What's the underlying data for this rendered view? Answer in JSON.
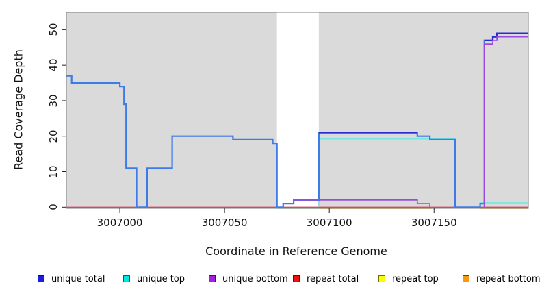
{
  "figure": {
    "x_axis_title": "Coordinate in Reference Genome",
    "y_axis_title": "Read Coverage Depth"
  },
  "chart_data": {
    "type": "line",
    "subtype": "step-coverage-plot",
    "title": "",
    "xlabel": "Coordinate in Reference Genome",
    "ylabel": "Read Coverage Depth",
    "xlim": [
      3006974.5,
      3007195
    ],
    "ylim": [
      -0.33,
      54.9
    ],
    "x_ticks": [
      3007000,
      3007050,
      3007100,
      3007150
    ],
    "y_ticks": [
      0,
      10,
      20,
      30,
      40,
      50
    ],
    "grid": false,
    "plot_background": "#DADADA",
    "unshaded_band": {
      "x0": 3007075,
      "x1": 3007095,
      "color": "#FFFFFF"
    },
    "box_color": "#7d7d7d",
    "legend_position": "bottom",
    "legend": [
      {
        "label": "unique total",
        "color": "#1D1DE0"
      },
      {
        "label": "unique top",
        "color": "#00E5E6"
      },
      {
        "label": "unique bottom",
        "color": "#A21FDC"
      },
      {
        "label": "repeat total",
        "color": "#EE1111"
      },
      {
        "label": "repeat top",
        "color": "#FCFC0A"
      },
      {
        "label": "repeat bottom",
        "color": "#F79A0E"
      }
    ],
    "series": [
      {
        "name": "unique total",
        "step_points": [
          [
            3006974.5,
            37
          ],
          [
            3006977,
            35
          ],
          [
            3007000,
            34
          ],
          [
            3007002,
            29
          ],
          [
            3007003,
            11
          ],
          [
            3007008,
            0
          ],
          [
            3007013,
            11
          ],
          [
            3007025,
            20
          ],
          [
            3007054,
            19
          ],
          [
            3007073,
            18
          ],
          [
            3007075,
            0
          ],
          [
            3007078,
            1
          ],
          [
            3007083,
            2
          ],
          [
            3007095,
            21
          ],
          [
            3007142,
            20
          ],
          [
            3007148,
            19
          ],
          [
            3007160,
            0
          ],
          [
            3007172,
            1
          ],
          [
            3007174,
            47
          ],
          [
            3007178,
            48
          ],
          [
            3007180,
            49
          ],
          [
            3007195,
            49
          ]
        ]
      },
      {
        "name": "unique top",
        "step_points": [
          [
            3006974.5,
            37
          ],
          [
            3006977,
            35
          ],
          [
            3007000,
            34
          ],
          [
            3007002,
            29
          ],
          [
            3007003,
            11
          ],
          [
            3007008,
            0
          ],
          [
            3007013,
            11
          ],
          [
            3007025,
            20
          ],
          [
            3007054,
            19
          ],
          [
            3007073,
            18
          ],
          [
            3007075,
            0
          ],
          [
            3007095,
            19
          ],
          [
            3007160,
            0
          ],
          [
            3007172,
            1
          ],
          [
            3007195,
            1
          ]
        ]
      },
      {
        "name": "unique bottom",
        "step_points": [
          [
            3006974.5,
            0
          ],
          [
            3007078,
            1
          ],
          [
            3007083,
            2
          ],
          [
            3007142,
            1
          ],
          [
            3007148,
            0
          ],
          [
            3007174,
            46
          ],
          [
            3007178,
            47
          ],
          [
            3007180,
            48
          ],
          [
            3007195,
            48
          ]
        ]
      },
      {
        "name": "repeat total",
        "step_points": [
          [
            3006974.5,
            0
          ],
          [
            3007195,
            0
          ]
        ]
      },
      {
        "name": "repeat top",
        "step_points": [
          [
            3006974.5,
            0
          ],
          [
            3007195,
            0
          ]
        ]
      },
      {
        "name": "repeat bottom",
        "step_points": [
          [
            3006974.5,
            0
          ],
          [
            3007195,
            0
          ]
        ]
      }
    ],
    "render_layers": [
      {
        "name": "repeat-total-line",
        "color": "#DE4265",
        "width": 1.4,
        "dy": 0,
        "runs": [
          [
            [
              3006974.5,
              0
            ],
            [
              3007195,
              0
            ]
          ]
        ]
      },
      {
        "name": "baseline-blend-line",
        "color": "#4CBE6A",
        "width": 1.4,
        "dy": 1.6,
        "runs": [
          [
            [
              3007075,
              0
            ],
            [
              3007095,
              0
            ]
          ]
        ]
      },
      {
        "name": "repeat-bottom-line",
        "color": "#F89B1C",
        "width": 1.6,
        "dy": 1.6,
        "runs": [
          [
            [
              3007095,
              0
            ],
            [
              3007149,
              0
            ]
          ],
          [
            [
              3007172,
              0
            ],
            [
              3007195,
              0
            ]
          ]
        ]
      },
      {
        "name": "unique-top-line",
        "color": "#73E6E0",
        "width": 1.6,
        "dy": -1.2,
        "runs": [
          [
            [
              3007095,
              0
            ],
            [
              3007095,
              19
            ],
            [
              3007160,
              19
            ],
            [
              3007160,
              0
            ]
          ],
          [
            [
              3007172,
              0
            ],
            [
              3007172,
              1
            ],
            [
              3007195,
              1
            ]
          ]
        ]
      },
      {
        "name": "unique-total-line",
        "color": "#3E7BE8",
        "width": 2.2,
        "dy": 0,
        "runs": [
          [
            [
              3006974.5,
              37
            ],
            [
              3006977,
              37
            ],
            [
              3006977,
              35
            ],
            [
              3007000,
              35
            ],
            [
              3007000,
              34
            ],
            [
              3007002,
              34
            ],
            [
              3007002,
              29
            ],
            [
              3007003,
              29
            ],
            [
              3007003,
              11
            ],
            [
              3007008,
              11
            ],
            [
              3007008,
              0
            ],
            [
              3007013,
              0
            ],
            [
              3007013,
              11
            ],
            [
              3007025,
              11
            ],
            [
              3007025,
              20
            ],
            [
              3007054,
              20
            ],
            [
              3007054,
              19
            ],
            [
              3007073,
              19
            ],
            [
              3007073,
              18
            ],
            [
              3007075,
              18
            ],
            [
              3007075,
              0
            ],
            [
              3007078,
              0
            ],
            [
              3007078,
              1
            ],
            [
              3007083,
              1
            ],
            [
              3007083,
              2
            ],
            [
              3007095,
              2
            ],
            [
              3007095,
              21
            ],
            [
              3007142,
              21
            ],
            [
              3007142,
              20
            ],
            [
              3007148,
              20
            ],
            [
              3007148,
              19
            ],
            [
              3007160,
              19
            ],
            [
              3007160,
              0
            ],
            [
              3007172,
              0
            ],
            [
              3007172,
              1
            ],
            [
              3007174,
              1
            ],
            [
              3007174,
              47
            ],
            [
              3007178,
              47
            ],
            [
              3007178,
              48
            ],
            [
              3007180,
              48
            ],
            [
              3007180,
              49
            ],
            [
              3007195,
              49
            ]
          ]
        ]
      },
      {
        "name": "unique-total-dark-overlay",
        "color": "#2B2BD3",
        "width": 2.2,
        "dy": 0,
        "runs": [
          [
            [
              3007095,
              21
            ],
            [
              3007142,
              21
            ]
          ],
          [
            [
              3007174,
              47
            ],
            [
              3007178,
              47
            ],
            [
              3007178,
              48
            ],
            [
              3007180,
              48
            ],
            [
              3007180,
              49
            ],
            [
              3007195,
              49
            ]
          ]
        ]
      },
      {
        "name": "unique-bottom-line",
        "color": "#9A4BDF",
        "width": 1.7,
        "dy": 0,
        "runs": [
          [
            [
              3007078,
              0
            ],
            [
              3007078,
              1
            ],
            [
              3007083,
              1
            ],
            [
              3007083,
              2
            ],
            [
              3007142,
              2
            ],
            [
              3007142,
              1
            ],
            [
              3007148,
              1
            ],
            [
              3007148,
              0
            ]
          ],
          [
            [
              3007174,
              0
            ],
            [
              3007174,
              46
            ],
            [
              3007178,
              46
            ],
            [
              3007178,
              47
            ],
            [
              3007180,
              47
            ],
            [
              3007180,
              48
            ],
            [
              3007195,
              48
            ]
          ]
        ]
      }
    ]
  }
}
